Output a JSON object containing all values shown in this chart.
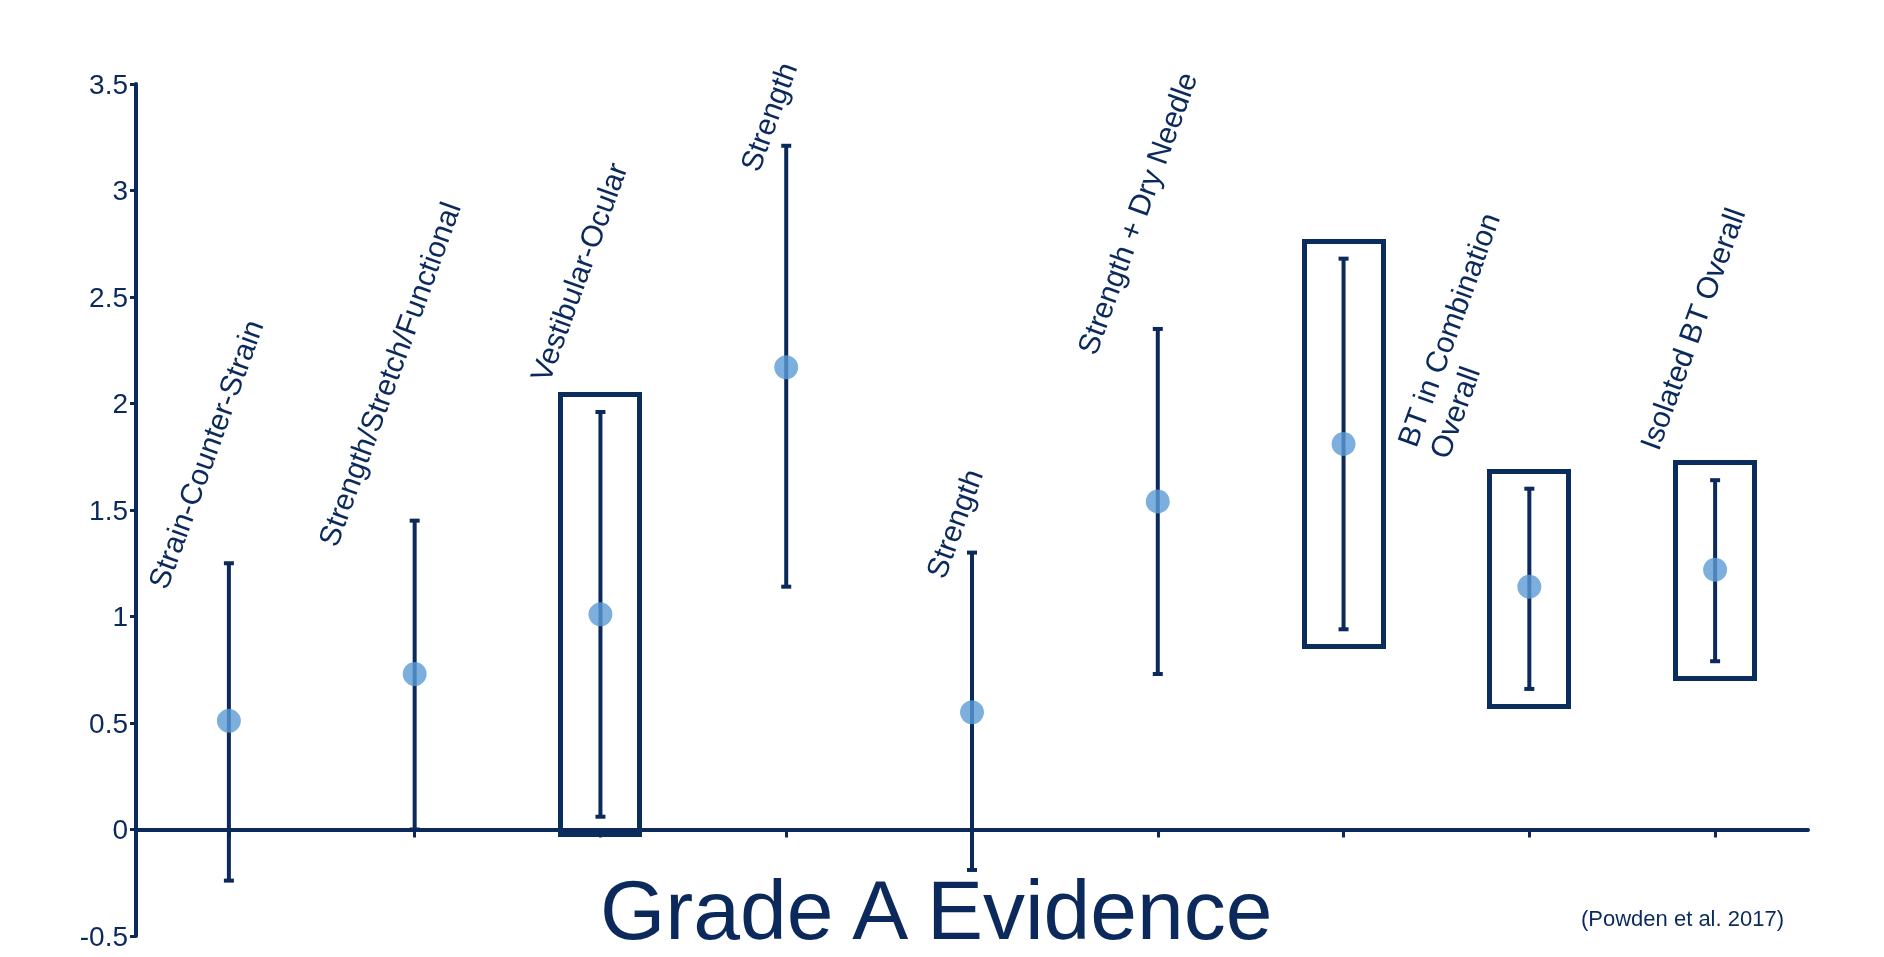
{
  "chart_data": {
    "type": "scatter",
    "title": "Grade A Evidence",
    "annotations": [
      "(Powden et al. 2017)"
    ],
    "categories": [
      "Strain-Counter-Strain",
      "Strength/Stretch/Functional",
      "Vestibular-Ocular",
      "Strength",
      "Strength",
      "Strength + Dry Needle",
      null,
      "BT in Combination\nOverall",
      "Isolated BT Overall"
    ],
    "series": [
      {
        "color": "#5b9bd5",
        "values": [
          0.51,
          0.73,
          1.01,
          2.17,
          0.55,
          1.54,
          1.81,
          1.14,
          1.22
        ],
        "errors": [
          [
            -0.24,
            1.25
          ],
          [
            0.0,
            1.45
          ],
          [
            0.06,
            1.96
          ],
          [
            1.14,
            3.21
          ],
          [
            -0.19,
            1.3
          ],
          [
            0.73,
            2.35
          ],
          [
            0.94,
            2.68
          ],
          [
            0.66,
            1.6
          ],
          [
            0.79,
            1.64
          ]
        ]
      }
    ],
    "ylim": [
      -0.5,
      3.5
    ],
    "yticks": [
      -0.5,
      0,
      0.5,
      1,
      1.5,
      2,
      2.5,
      3,
      3.5
    ],
    "tick_labels": "y",
    "grid": false,
    "marker": "circle"
  }
}
